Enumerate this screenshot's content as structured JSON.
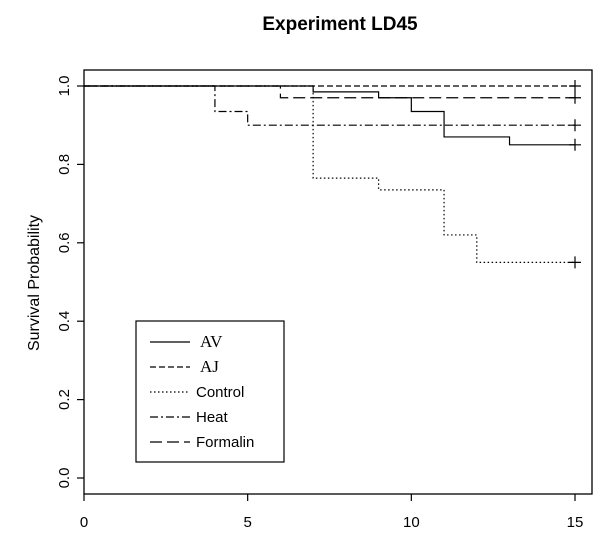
{
  "chart_data": {
    "type": "line",
    "title": "Experiment LD45",
    "xlabel": "",
    "ylabel": "Survival Probability",
    "xlim": [
      0,
      15
    ],
    "ylim": [
      0,
      1
    ],
    "x_ticks": [
      "0",
      "5",
      "10",
      "15"
    ],
    "y_ticks": [
      "0.0",
      "0.2",
      "0.4",
      "0.6",
      "0.8",
      "1.0"
    ],
    "grid": false,
    "legend_position": "bottom-left",
    "series": [
      {
        "name": "AV",
        "style": "solid",
        "steps": [
          [
            0,
            1.0
          ],
          [
            7,
            0.985
          ],
          [
            9,
            0.97
          ],
          [
            10,
            0.935
          ],
          [
            11,
            0.87
          ],
          [
            13,
            0.85
          ],
          [
            15,
            0.85
          ]
        ],
        "censor": [
          [
            15,
            0.85
          ]
        ]
      },
      {
        "name": "AJ",
        "style": "dashed",
        "steps": [
          [
            0,
            1.0
          ],
          [
            15,
            1.0
          ]
        ],
        "censor": [
          [
            15,
            1.0
          ]
        ]
      },
      {
        "name": "Control",
        "style": "dotted",
        "steps": [
          [
            0,
            1.0
          ],
          [
            6,
            1.0
          ],
          [
            7,
            0.765
          ],
          [
            9,
            0.735
          ],
          [
            11,
            0.62
          ],
          [
            12,
            0.55
          ],
          [
            15,
            0.55
          ]
        ],
        "censor": [
          [
            15,
            0.55
          ]
        ]
      },
      {
        "name": "Heat",
        "style": "dashdot",
        "steps": [
          [
            0,
            1.0
          ],
          [
            4,
            0.935
          ],
          [
            5,
            0.9
          ],
          [
            15,
            0.9
          ]
        ],
        "censor": [
          [
            15,
            0.9
          ]
        ]
      },
      {
        "name": "Formalin",
        "style": "longdash",
        "steps": [
          [
            0,
            1.0
          ],
          [
            6,
            0.97
          ],
          [
            15,
            0.97
          ]
        ],
        "censor": [
          [
            15,
            0.97
          ]
        ]
      }
    ]
  }
}
